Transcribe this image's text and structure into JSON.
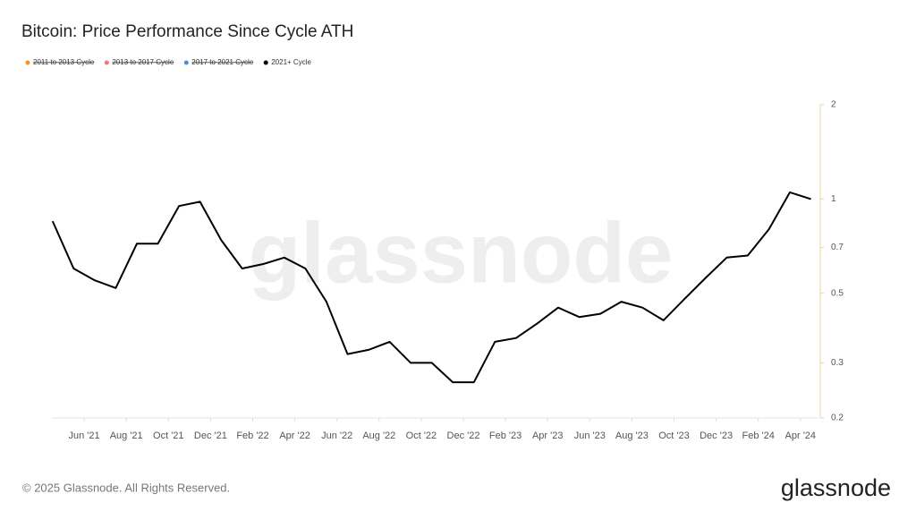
{
  "chart_data": {
    "type": "line",
    "title": "Bitcoin: Price Performance Since Cycle ATH",
    "x": [
      "2021-04",
      "2021-05",
      "2021-06",
      "2021-07",
      "2021-08",
      "2021-09",
      "2021-10",
      "2021-11",
      "2021-12",
      "2022-01",
      "2022-02",
      "2022-03",
      "2022-04",
      "2022-05",
      "2022-06",
      "2022-07",
      "2022-08",
      "2022-09",
      "2022-10",
      "2022-11",
      "2022-12",
      "2023-01",
      "2023-02",
      "2023-03",
      "2023-04",
      "2023-05",
      "2023-06",
      "2023-07",
      "2023-08",
      "2023-09",
      "2023-10",
      "2023-11",
      "2023-12",
      "2024-01",
      "2024-02",
      "2024-03",
      "2024-04"
    ],
    "series": [
      {
        "name": "2011 to 2013 Cycle",
        "color": "#f7931a",
        "visible": false
      },
      {
        "name": "2013 to 2017 Cycle",
        "color": "#f07878",
        "visible": false
      },
      {
        "name": "2017 to 2021 Cycle",
        "color": "#4a8fe7",
        "visible": false
      },
      {
        "name": "2021+ Cycle",
        "color": "#000000",
        "visible": true,
        "values": [
          0.85,
          0.6,
          0.55,
          0.52,
          0.72,
          0.72,
          0.95,
          0.98,
          0.74,
          0.6,
          0.62,
          0.65,
          0.6,
          0.47,
          0.32,
          0.33,
          0.35,
          0.3,
          0.3,
          0.26,
          0.26,
          0.35,
          0.36,
          0.4,
          0.45,
          0.42,
          0.43,
          0.47,
          0.45,
          0.41,
          0.48,
          0.56,
          0.65,
          0.66,
          0.8,
          1.05,
          1.0
        ]
      }
    ],
    "xticks": [
      {
        "value": "2021-06",
        "label": "Jun '21"
      },
      {
        "value": "2021-08",
        "label": "Aug '21"
      },
      {
        "value": "2021-10",
        "label": "Oct '21"
      },
      {
        "value": "2021-12",
        "label": "Dec '21"
      },
      {
        "value": "2022-02",
        "label": "Feb '22"
      },
      {
        "value": "2022-04",
        "label": "Apr '22"
      },
      {
        "value": "2022-06",
        "label": "Jun '22"
      },
      {
        "value": "2022-08",
        "label": "Aug '22"
      },
      {
        "value": "2022-10",
        "label": "Oct '22"
      },
      {
        "value": "2022-12",
        "label": "Dec '22"
      },
      {
        "value": "2023-02",
        "label": "Feb '23"
      },
      {
        "value": "2023-04",
        "label": "Apr '23"
      },
      {
        "value": "2023-06",
        "label": "Jun '23"
      },
      {
        "value": "2023-08",
        "label": "Aug '23"
      },
      {
        "value": "2023-10",
        "label": "Oct '23"
      },
      {
        "value": "2023-12",
        "label": "Dec '23"
      },
      {
        "value": "2024-02",
        "label": "Feb '24"
      },
      {
        "value": "2024-04",
        "label": "Apr '24"
      }
    ],
    "ylim": [
      0.2,
      2
    ],
    "yticks": [
      0.2,
      0.3,
      0.5,
      0.7,
      1,
      2
    ],
    "log_scale": true,
    "grid": false
  },
  "watermark": "glassnode",
  "footer": "© 2025 Glassnode. All Rights Reserved.",
  "logo": "glassnode"
}
